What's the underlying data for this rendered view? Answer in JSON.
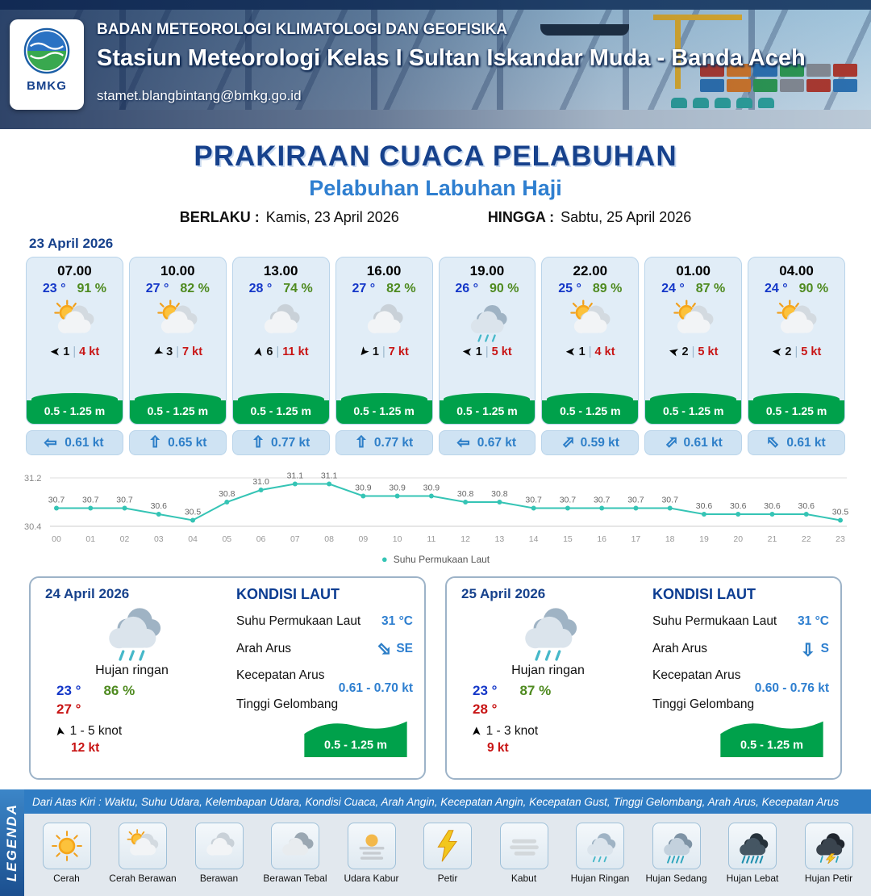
{
  "header": {
    "org": "BADAN METEOROLOGI KLIMATOLOGI DAN GEOFISIKA",
    "station": "Stasiun Meteorologi Kelas I Sultan Iskandar Muda - Banda Aceh",
    "email": "stamet.blangbintang@bmkg.go.id",
    "logo_label": "BMKG"
  },
  "title": {
    "main": "PRAKIRAAN CUACA PELABUHAN",
    "sub": "Pelabuhan Labuhan Haji",
    "berlaku_label": "BERLAKU :",
    "berlaku_value": "Kamis, 23 April 2026",
    "hingga_label": "HINGGA :",
    "hingga_value": "Sabtu, 25 April 2026"
  },
  "forecast_date": "23 April 2026",
  "glyphs": {
    "wind_arrow": "➤",
    "current_arrow": "⇧",
    "dot": "●"
  },
  "cards": [
    {
      "time": "07.00",
      "temp": "23 °",
      "hum": "91 %",
      "icon": "#ic-cerah-berawan",
      "wind_style": "transform:rotate(180deg)",
      "wind_num": "1",
      "wind_speed": "4 kt",
      "wave": "0.5 - 1.25 m",
      "cur_style": "transform:rotate(-90deg)",
      "current": "0.61 kt"
    },
    {
      "time": "10.00",
      "temp": "27 °",
      "hum": "82 %",
      "icon": "#ic-cerah-berawan",
      "wind_style": "transform:rotate(150deg)",
      "wind_num": "3",
      "wind_speed": "7 kt",
      "wave": "0.5 - 1.25 m",
      "cur_style": "transform:rotate(0deg)",
      "current": "0.65 kt"
    },
    {
      "time": "13.00",
      "temp": "28 °",
      "hum": "74 %",
      "icon": "#ic-berawan",
      "wind_style": "transform:rotate(-80deg)",
      "wind_num": "6",
      "wind_speed": "11 kt",
      "wave": "0.5 - 1.25 m",
      "cur_style": "transform:rotate(0deg)",
      "current": "0.77 kt"
    },
    {
      "time": "16.00",
      "temp": "27 °",
      "hum": "82 %",
      "icon": "#ic-berawan",
      "wind_style": "transform:rotate(130deg)",
      "wind_num": "1",
      "wind_speed": "7 kt",
      "wave": "0.5 - 1.25 m",
      "cur_style": "transform:rotate(0deg)",
      "current": "0.77 kt"
    },
    {
      "time": "19.00",
      "temp": "26 °",
      "hum": "90 %",
      "icon": "#ic-hujan-ringan",
      "wind_style": "transform:rotate(185deg)",
      "wind_num": "1",
      "wind_speed": "5 kt",
      "wave": "0.5 - 1.25 m",
      "cur_style": "transform:rotate(-90deg)",
      "current": "0.67 kt"
    },
    {
      "time": "22.00",
      "temp": "25 °",
      "hum": "89 %",
      "icon": "#ic-cerah-berawan",
      "wind_style": "transform:rotate(180deg)",
      "wind_num": "1",
      "wind_speed": "4 kt",
      "wave": "0.5 - 1.25 m",
      "cur_style": "transform:rotate(45deg)",
      "current": "0.59 kt"
    },
    {
      "time": "01.00",
      "temp": "24 °",
      "hum": "87 %",
      "icon": "#ic-cerah-berawan",
      "wind_style": "transform:rotate(195deg)",
      "wind_num": "2",
      "wind_speed": "5 kt",
      "wave": "0.5 - 1.25 m",
      "cur_style": "transform:rotate(45deg)",
      "current": "0.61 kt"
    },
    {
      "time": "04.00",
      "temp": "24 °",
      "hum": "90 %",
      "icon": "#ic-cerah-berawan",
      "wind_style": "transform:rotate(185deg)",
      "wind_num": "2",
      "wind_speed": "5 kt",
      "wave": "0.5 - 1.25 m",
      "cur_style": "transform:rotate(-45deg)",
      "current": "0.61 kt"
    }
  ],
  "chart_data": {
    "type": "line",
    "series_name": "Suhu Permukaan Laut",
    "x": [
      "00",
      "01",
      "02",
      "03",
      "04",
      "05",
      "06",
      "07",
      "08",
      "09",
      "10",
      "11",
      "12",
      "13",
      "14",
      "15",
      "16",
      "17",
      "18",
      "19",
      "20",
      "21",
      "22",
      "23"
    ],
    "values": [
      30.7,
      30.7,
      30.7,
      30.6,
      30.5,
      30.8,
      31.0,
      31.1,
      31.1,
      30.9,
      30.9,
      30.9,
      30.8,
      30.8,
      30.7,
      30.7,
      30.7,
      30.7,
      30.7,
      30.6,
      30.6,
      30.6,
      30.6,
      30.5
    ],
    "ylim": [
      30.4,
      31.2
    ],
    "line_color": "#35c4b5",
    "grid": true,
    "legend_position": "bottom"
  },
  "days": [
    {
      "date": "24 April 2026",
      "icon": "#ic-hujan-ringan",
      "cond": "Hujan ringan",
      "tmin": "23 °",
      "hum": "86 %",
      "tmax": "27 °",
      "wind_style": "transform:rotate(-100deg)",
      "wind": "1 - 5 knot",
      "gust": "12 kt",
      "sea": {
        "title": "KONDISI LAUT",
        "sst_label": "Suhu Permukaan Laut",
        "sst": "31 °C",
        "arah_label": "Arah Arus",
        "arah": "SE",
        "arrow_style": "transform:rotate(135deg)",
        "kec_label": "Kecepatan Arus",
        "kec": "0.61 - 0.70 kt",
        "gel_label": "Tinggi Gelombang",
        "gel": "0.5 - 1.25 m"
      }
    },
    {
      "date": "25 April 2026",
      "icon": "#ic-hujan-ringan",
      "cond": "Hujan ringan",
      "tmin": "23 °",
      "hum": "87 %",
      "tmax": "28 °",
      "wind_style": "transform:rotate(-90deg)",
      "wind": "1 - 3 knot",
      "gust": "9 kt",
      "sea": {
        "title": "KONDISI LAUT",
        "sst_label": "Suhu Permukaan Laut",
        "sst": "31 °C",
        "arah_label": "Arah Arus",
        "arah": "S",
        "arrow_style": "transform:rotate(180deg)",
        "kec_label": "Kecepatan Arus",
        "kec": "0.60 - 0.76 kt",
        "gel_label": "Tinggi Gelombang",
        "gel": "0.5 - 1.25 m"
      }
    }
  ],
  "legend": {
    "title": "LEGENDA",
    "note": "Dari Atas Kiri : Waktu, Suhu Udara, Kelembapan Udara, Kondisi Cuaca, Arah Angin, Kecepatan Angin, Kecepatan Gust, Tinggi Gelombang, Arah Arus, Kecepatan Arus",
    "items": [
      {
        "label": "Cerah",
        "icon": "#ic-cerah"
      },
      {
        "label": "Cerah Berawan",
        "icon": "#ic-cerah-berawan"
      },
      {
        "label": "Berawan",
        "icon": "#ic-berawan"
      },
      {
        "label": "Berawan Tebal",
        "icon": "#ic-berawan-tebal"
      },
      {
        "label": "Udara Kabur",
        "icon": "#ic-udara-kabur"
      },
      {
        "label": "Petir",
        "icon": "#ic-petir"
      },
      {
        "label": "Kabut",
        "icon": "#ic-kabut"
      },
      {
        "label": "Hujan Ringan",
        "icon": "#ic-hujan-ringan"
      },
      {
        "label": "Hujan Sedang",
        "icon": "#ic-hujan-sedang"
      },
      {
        "label": "Hujan Lebat",
        "icon": "#ic-hujan-lebat"
      },
      {
        "label": "Hujan Petir",
        "icon": "#ic-hujan-petir"
      }
    ]
  }
}
